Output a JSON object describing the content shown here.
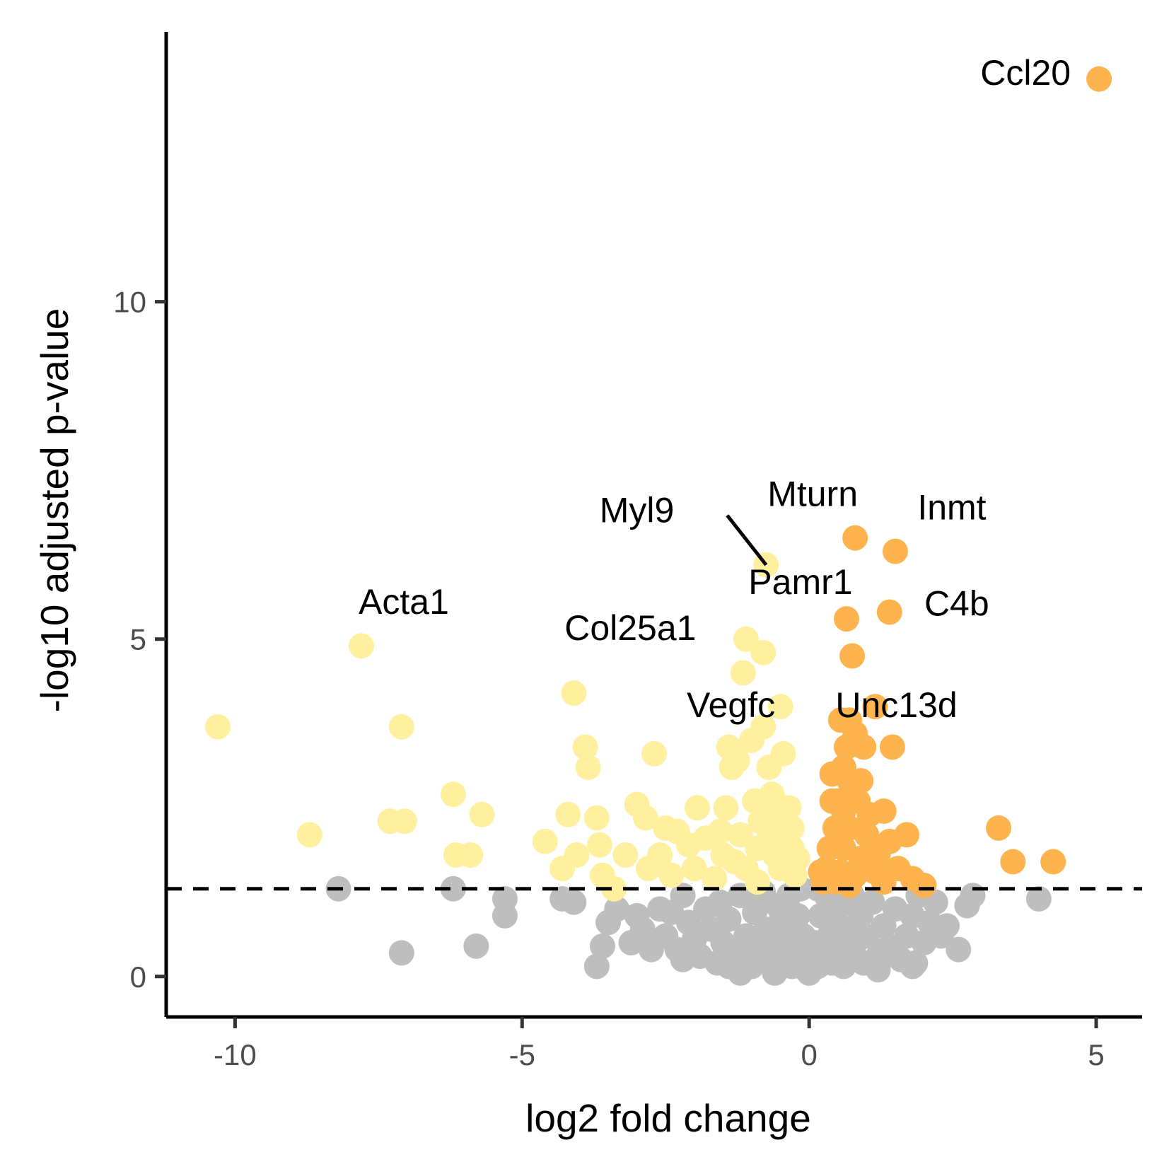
{
  "chart_data": {
    "type": "scatter",
    "title": "",
    "xlabel": "log2 fold change",
    "ylabel": "-log10 adjusted p-value",
    "xlim": [
      -11.2,
      5.8
    ],
    "ylim": [
      -0.6,
      14.0
    ],
    "x_ticks": [
      {
        "value": -10,
        "label": "-10"
      },
      {
        "value": -5,
        "label": "-5"
      },
      {
        "value": 0,
        "label": "0"
      },
      {
        "value": 5,
        "label": "5"
      }
    ],
    "y_ticks": [
      {
        "value": 0,
        "label": "0"
      },
      {
        "value": 5,
        "label": "5"
      },
      {
        "value": 10,
        "label": "10"
      }
    ],
    "grid": false,
    "legend": "none",
    "threshold": {
      "y": 1.3,
      "style": "dashed"
    },
    "colors": {
      "down": "#fff0a0",
      "up": "#fdb44e",
      "ns": "#bebebe"
    },
    "series": [
      {
        "group": "down",
        "points": [
          [
            -10.3,
            3.7
          ],
          [
            -8.7,
            2.1
          ],
          [
            -7.8,
            4.9
          ],
          [
            -7.3,
            2.3
          ],
          [
            -7.05,
            2.3
          ],
          [
            -7.1,
            3.7
          ],
          [
            -6.2,
            2.7
          ],
          [
            -6.15,
            1.8
          ],
          [
            -5.9,
            1.8
          ],
          [
            -5.7,
            2.4
          ],
          [
            -4.6,
            2.0
          ],
          [
            -4.3,
            1.6
          ],
          [
            -4.2,
            2.4
          ],
          [
            -4.1,
            4.2
          ],
          [
            -4.05,
            1.8
          ],
          [
            -3.9,
            3.4
          ],
          [
            -3.85,
            3.1
          ],
          [
            -3.7,
            2.35
          ],
          [
            -3.65,
            1.95
          ],
          [
            -3.6,
            1.5
          ],
          [
            -3.4,
            1.3
          ],
          [
            -3.2,
            1.8
          ],
          [
            -3.0,
            2.55
          ],
          [
            -2.85,
            2.35
          ],
          [
            -2.7,
            3.3
          ],
          [
            -2.6,
            1.8
          ],
          [
            -2.5,
            2.2
          ],
          [
            -2.4,
            1.5
          ],
          [
            -2.3,
            2.15
          ],
          [
            -2.1,
            1.95
          ],
          [
            -1.95,
            2.5
          ],
          [
            -1.8,
            2.05
          ],
          [
            -1.65,
            1.45
          ],
          [
            -1.55,
            2.15
          ],
          [
            -1.5,
            1.8
          ],
          [
            -1.45,
            2.5
          ],
          [
            -1.4,
            3.4
          ],
          [
            -1.35,
            3.1
          ],
          [
            -1.25,
            3.2
          ],
          [
            -1.2,
            2.1
          ],
          [
            -1.15,
            4.5
          ],
          [
            -1.1,
            1.6
          ],
          [
            -1.1,
            5.0
          ],
          [
            -1.0,
            3.5
          ],
          [
            -0.95,
            2.6
          ],
          [
            -0.9,
            1.9
          ],
          [
            -0.85,
            2.3
          ],
          [
            -0.8,
            3.7
          ],
          [
            -0.8,
            4.8
          ],
          [
            -0.75,
            6.1
          ],
          [
            -0.7,
            2.05
          ],
          [
            -0.7,
            3.1
          ],
          [
            -0.65,
            2.7
          ],
          [
            -0.6,
            1.8
          ],
          [
            -0.55,
            2.3
          ],
          [
            -0.5,
            4.0
          ],
          [
            -0.45,
            3.3
          ],
          [
            -0.4,
            2.1
          ],
          [
            -0.35,
            2.5
          ],
          [
            -0.3,
            1.9
          ],
          [
            -0.25,
            1.5
          ],
          [
            -0.2,
            1.75
          ],
          [
            -0.3,
            2.2
          ],
          [
            -0.5,
            1.6
          ],
          [
            -0.6,
            2.6
          ],
          [
            -0.9,
            1.4
          ],
          [
            -1.3,
            1.7
          ],
          [
            -2.0,
            1.6
          ],
          [
            -2.8,
            1.6
          ]
        ]
      },
      {
        "group": "up",
        "points": [
          [
            5.05,
            13.3
          ],
          [
            0.8,
            6.5
          ],
          [
            1.5,
            6.3
          ],
          [
            0.65,
            5.3
          ],
          [
            1.4,
            5.4
          ],
          [
            0.75,
            4.75
          ],
          [
            1.15,
            4.0
          ],
          [
            0.55,
            3.8
          ],
          [
            0.7,
            3.8
          ],
          [
            0.8,
            3.6
          ],
          [
            0.65,
            3.4
          ],
          [
            0.95,
            3.4
          ],
          [
            1.45,
            3.4
          ],
          [
            0.4,
            3.0
          ],
          [
            0.6,
            3.1
          ],
          [
            0.7,
            2.9
          ],
          [
            0.5,
            2.6
          ],
          [
            0.85,
            2.6
          ],
          [
            1.05,
            2.4
          ],
          [
            1.3,
            2.45
          ],
          [
            0.45,
            2.2
          ],
          [
            0.7,
            2.2
          ],
          [
            1.0,
            2.1
          ],
          [
            1.7,
            2.1
          ],
          [
            0.35,
            1.9
          ],
          [
            0.6,
            1.9
          ],
          [
            0.9,
            1.75
          ],
          [
            1.2,
            1.8
          ],
          [
            0.3,
            1.6
          ],
          [
            0.55,
            1.55
          ],
          [
            0.8,
            1.5
          ],
          [
            1.0,
            1.6
          ],
          [
            1.55,
            1.6
          ],
          [
            1.8,
            1.45
          ],
          [
            2.0,
            1.35
          ],
          [
            0.25,
            1.4
          ],
          [
            0.45,
            1.4
          ],
          [
            0.7,
            1.35
          ],
          [
            1.3,
            1.4
          ],
          [
            3.3,
            2.2
          ],
          [
            3.55,
            1.7
          ],
          [
            4.25,
            1.7
          ],
          [
            0.4,
            2.6
          ],
          [
            0.9,
            2.9
          ],
          [
            1.4,
            2.0
          ],
          [
            0.2,
            1.55
          ],
          [
            1.15,
            1.55
          ],
          [
            0.6,
            2.45
          ]
        ]
      },
      {
        "group": "ns",
        "points": [
          [
            -8.2,
            1.3
          ],
          [
            -7.1,
            0.35
          ],
          [
            -6.2,
            1.3
          ],
          [
            -5.8,
            0.45
          ],
          [
            -5.3,
            1.15
          ],
          [
            -5.3,
            0.9
          ],
          [
            -4.3,
            1.15
          ],
          [
            -4.1,
            1.1
          ],
          [
            -3.7,
            0.15
          ],
          [
            -3.6,
            0.45
          ],
          [
            -3.5,
            0.8
          ],
          [
            -3.35,
            1.0
          ],
          [
            -3.1,
            0.5
          ],
          [
            -2.9,
            0.7
          ],
          [
            -2.75,
            0.4
          ],
          [
            -2.6,
            1.0
          ],
          [
            -2.5,
            0.6
          ],
          [
            -2.3,
            0.4
          ],
          [
            -2.2,
            1.2
          ],
          [
            -2.1,
            0.8
          ],
          [
            -2.0,
            0.55
          ],
          [
            -1.9,
            0.3
          ],
          [
            -1.8,
            1.0
          ],
          [
            -1.7,
            0.7
          ],
          [
            -1.6,
            0.2
          ],
          [
            -1.55,
            1.1
          ],
          [
            -1.5,
            0.5
          ],
          [
            -1.4,
            0.85
          ],
          [
            -1.3,
            0.3
          ],
          [
            -1.2,
            1.2
          ],
          [
            -1.1,
            0.6
          ],
          [
            -1.0,
            0.15
          ],
          [
            -0.95,
            0.95
          ],
          [
            -0.9,
            0.4
          ],
          [
            -0.8,
            1.25
          ],
          [
            -0.75,
            0.7
          ],
          [
            -0.7,
            0.2
          ],
          [
            -0.6,
            0.5
          ],
          [
            -0.55,
            1.05
          ],
          [
            -0.5,
            0.8
          ],
          [
            -0.45,
            0.3
          ],
          [
            -0.4,
            0.6
          ],
          [
            -0.35,
            1.2
          ],
          [
            -0.3,
            0.15
          ],
          [
            -0.25,
            0.45
          ],
          [
            -0.2,
            0.9
          ],
          [
            -0.15,
            0.25
          ],
          [
            -0.1,
            0.6
          ],
          [
            -0.05,
            0.1
          ],
          [
            0.0,
            0.05
          ],
          [
            0.05,
            0.2
          ],
          [
            0.1,
            0.5
          ],
          [
            0.15,
            0.15
          ],
          [
            0.2,
            0.9
          ],
          [
            0.25,
            0.3
          ],
          [
            0.3,
            1.2
          ],
          [
            0.35,
            0.6
          ],
          [
            0.4,
            0.2
          ],
          [
            0.45,
            0.85
          ],
          [
            0.5,
            0.4
          ],
          [
            0.55,
            1.05
          ],
          [
            0.6,
            0.15
          ],
          [
            0.65,
            0.7
          ],
          [
            0.7,
            0.3
          ],
          [
            0.75,
            1.2
          ],
          [
            0.8,
            0.5
          ],
          [
            0.9,
            0.9
          ],
          [
            0.95,
            0.2
          ],
          [
            1.0,
            0.6
          ],
          [
            1.1,
            1.1
          ],
          [
            1.2,
            0.3
          ],
          [
            1.3,
            0.75
          ],
          [
            1.4,
            0.45
          ],
          [
            1.5,
            1.0
          ],
          [
            1.6,
            0.25
          ],
          [
            1.7,
            0.6
          ],
          [
            1.8,
            0.9
          ],
          [
            1.85,
            0.2
          ],
          [
            1.9,
            1.2
          ],
          [
            2.0,
            0.5
          ],
          [
            2.1,
            0.8
          ],
          [
            2.2,
            1.1
          ],
          [
            2.3,
            0.6
          ],
          [
            2.4,
            0.75
          ],
          [
            2.6,
            0.4
          ],
          [
            2.75,
            1.05
          ],
          [
            2.85,
            1.2
          ],
          [
            4.0,
            1.15
          ],
          [
            1.8,
            0.15
          ],
          [
            1.2,
            0.1
          ],
          [
            -0.6,
            0.05
          ],
          [
            -1.2,
            0.05
          ],
          [
            -1.4,
            0.15
          ],
          [
            -2.4,
            0.95
          ],
          [
            -3.0,
            0.9
          ],
          [
            -2.2,
            0.25
          ],
          [
            0.15,
            1.3
          ],
          [
            -0.15,
            1.3
          ],
          [
            -0.9,
            1.3
          ],
          [
            0.6,
            1.3
          ]
        ]
      }
    ],
    "labels": [
      {
        "text": "Ccl20",
        "x": 5.05,
        "y": 13.3
      },
      {
        "text": "Mturn",
        "x": 0.8,
        "y": 6.5
      },
      {
        "text": "Inmt",
        "x": 1.5,
        "y": 6.3
      },
      {
        "text": "Myl9",
        "x": -0.75,
        "y": 6.1
      },
      {
        "text": "Pamr1",
        "x": 0.65,
        "y": 5.3
      },
      {
        "text": "C4b",
        "x": 1.4,
        "y": 5.4
      },
      {
        "text": "Acta1",
        "x": -7.8,
        "y": 4.9
      },
      {
        "text": "Col25a1",
        "x": -4.1,
        "y": 4.2
      },
      {
        "text": "Vegfc",
        "x": -0.5,
        "y": 4.0
      },
      {
        "text": "Unc13d",
        "x": 1.15,
        "y": 4.0
      }
    ]
  }
}
